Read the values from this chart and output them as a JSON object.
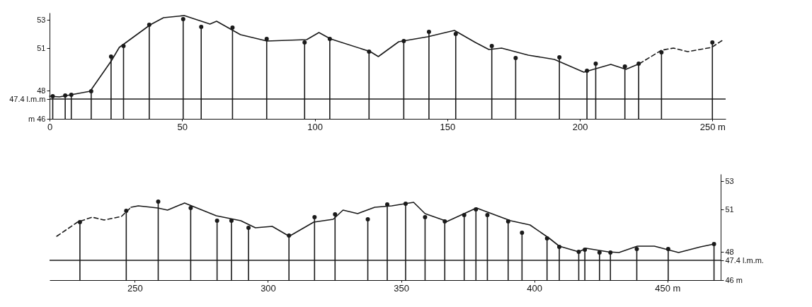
{
  "chart_data": [
    {
      "type": "line",
      "xlim": [
        0,
        255
      ],
      "xticks": [
        0,
        50,
        100,
        150,
        200,
        {
          "value": 250,
          "label": "250 m"
        }
      ],
      "ylim": [
        46,
        53.5
      ],
      "yticks": [
        {
          "value": 46,
          "label": "m 46"
        },
        {
          "value": 47.4,
          "label": "47.4 l.m.m"
        },
        48,
        51,
        53
      ],
      "ref_lines": [
        {
          "axis": "y",
          "value": 47.4,
          "color": "#1a1a1a",
          "line_style": "solid"
        }
      ],
      "series": [
        {
          "color": "#1a1a1a",
          "line_style": "solid",
          "x": [
            0,
            3.7,
            15.3,
            23.3,
            26.3,
            38,
            43,
            50.8,
            60.5,
            63,
            72,
            82,
            97,
            101.6,
            106,
            121,
            124,
            131.7,
            142.6,
            152.7,
            160.6,
            165.7,
            170.5,
            180.6,
            190.4,
            201.5,
            211.7,
            217.4,
            222.5
          ],
          "values": [
            47.6,
            47.55,
            47.95,
            50.1,
            51.05,
            52.65,
            53.15,
            53.3,
            52.7,
            52.9,
            51.95,
            51.5,
            51.6,
            52.1,
            51.65,
            50.75,
            50.4,
            51.45,
            51.8,
            52.25,
            51.4,
            50.9,
            51,
            50.5,
            50.2,
            49.3,
            49.85,
            49.5,
            49.9
          ]
        },
        {
          "color": "#1a1a1a",
          "line_style": "dashed",
          "x": [
            222.5,
            230.8,
            235.3,
            240.7,
            249.7,
            254.2
          ],
          "values": [
            49.9,
            50.85,
            51,
            50.75,
            51.05,
            51.6
          ]
        },
        {
          "type": "lollipop",
          "color": "#1a1a1a",
          "marker": "circle",
          "x": [
            1.2,
            5.9,
            8.2,
            15.7,
            23.2,
            27.9,
            37.6,
            50.4,
            57.2,
            69,
            81.9,
            96.2,
            105.7,
            120.5,
            133.6,
            143.1,
            153.2,
            166.8,
            175.8,
            192.3,
            202.7,
            206,
            217,
            222.2,
            230.8,
            250
          ],
          "values": [
            47.6,
            47.65,
            47.7,
            47.95,
            50.4,
            51.15,
            52.65,
            53.05,
            52.5,
            52.45,
            51.65,
            51.4,
            51.65,
            50.75,
            51.5,
            52.15,
            52,
            51.15,
            50.3,
            50.35,
            49.4,
            49.9,
            49.7,
            49.9,
            50.7,
            51.4
          ]
        }
      ]
    },
    {
      "type": "line",
      "xlim": [
        218,
        470
      ],
      "xticks": [
        250,
        300,
        350,
        400,
        {
          "value": 450,
          "label": "450 m"
        }
      ],
      "y2lim": [
        46,
        53.5
      ],
      "y2ticks": [
        {
          "value": 46,
          "label": "46 m"
        },
        {
          "value": 47.4,
          "label": "47.4 l.m.m."
        },
        48,
        51,
        53
      ],
      "ref_lines": [
        {
          "axis": "y2",
          "value": 47.4,
          "color": "#1a1a1a",
          "line_style": "solid"
        }
      ],
      "series": [
        {
          "axis": "y2",
          "color": "#1a1a1a",
          "line_style": "solid",
          "x": [
            248.6,
            251.3,
            258.6,
            262.3,
            268.7,
            280.6,
            289.8,
            295.3,
            301.6,
            308,
            317.2,
            324.5,
            328.2,
            333.7,
            340.1,
            346.5,
            354.7,
            359,
            367.3,
            378.3,
            391.1,
            398.4,
            405.7,
            409.4,
            416.7,
            419.5,
            427.7,
            431.8,
            438.7,
            445.1,
            454.2,
            462.4,
            467.5
          ],
          "values": [
            51.15,
            51.25,
            51.1,
            50.95,
            51.45,
            50.55,
            50.2,
            49.7,
            49.8,
            49.1,
            50.1,
            50.3,
            50.95,
            50.7,
            51.15,
            51.25,
            51.5,
            50.7,
            50.15,
            51.1,
            50.2,
            49.9,
            48.95,
            48.4,
            48,
            48.25,
            48,
            47.95,
            48.4,
            48.4,
            47.95,
            48.35,
            48.55
          ]
        },
        {
          "axis": "y2",
          "color": "#1a1a1a",
          "line_style": "dashed",
          "x": [
            220.7,
            228.5,
            234,
            238.5,
            245,
            248.6
          ],
          "values": [
            49.1,
            50.1,
            50.45,
            50.25,
            50.5,
            51.15
          ]
        },
        {
          "type": "lollipop",
          "axis": "y2",
          "color": "#1a1a1a",
          "marker": "circle",
          "x": [
            229.4,
            246.8,
            258.8,
            271,
            280.9,
            286.3,
            292.7,
            307.9,
            317.5,
            325.2,
            337.5,
            344.8,
            351.7,
            359,
            366.4,
            373.7,
            378.1,
            382.4,
            390.2,
            395.4,
            404.8,
            409.4,
            416.7,
            419,
            424.5,
            428.6,
            438.5,
            450.3,
            467.5
          ],
          "values": [
            50.1,
            50.9,
            51.55,
            51.1,
            50.2,
            50.2,
            49.7,
            49.15,
            50.45,
            50.65,
            50.3,
            51.35,
            51.4,
            50.45,
            50.15,
            50.6,
            51,
            50.6,
            50.15,
            49.35,
            48.95,
            48.35,
            48,
            48.15,
            47.95,
            47.95,
            48.2,
            48.2,
            48.55
          ]
        }
      ]
    }
  ]
}
